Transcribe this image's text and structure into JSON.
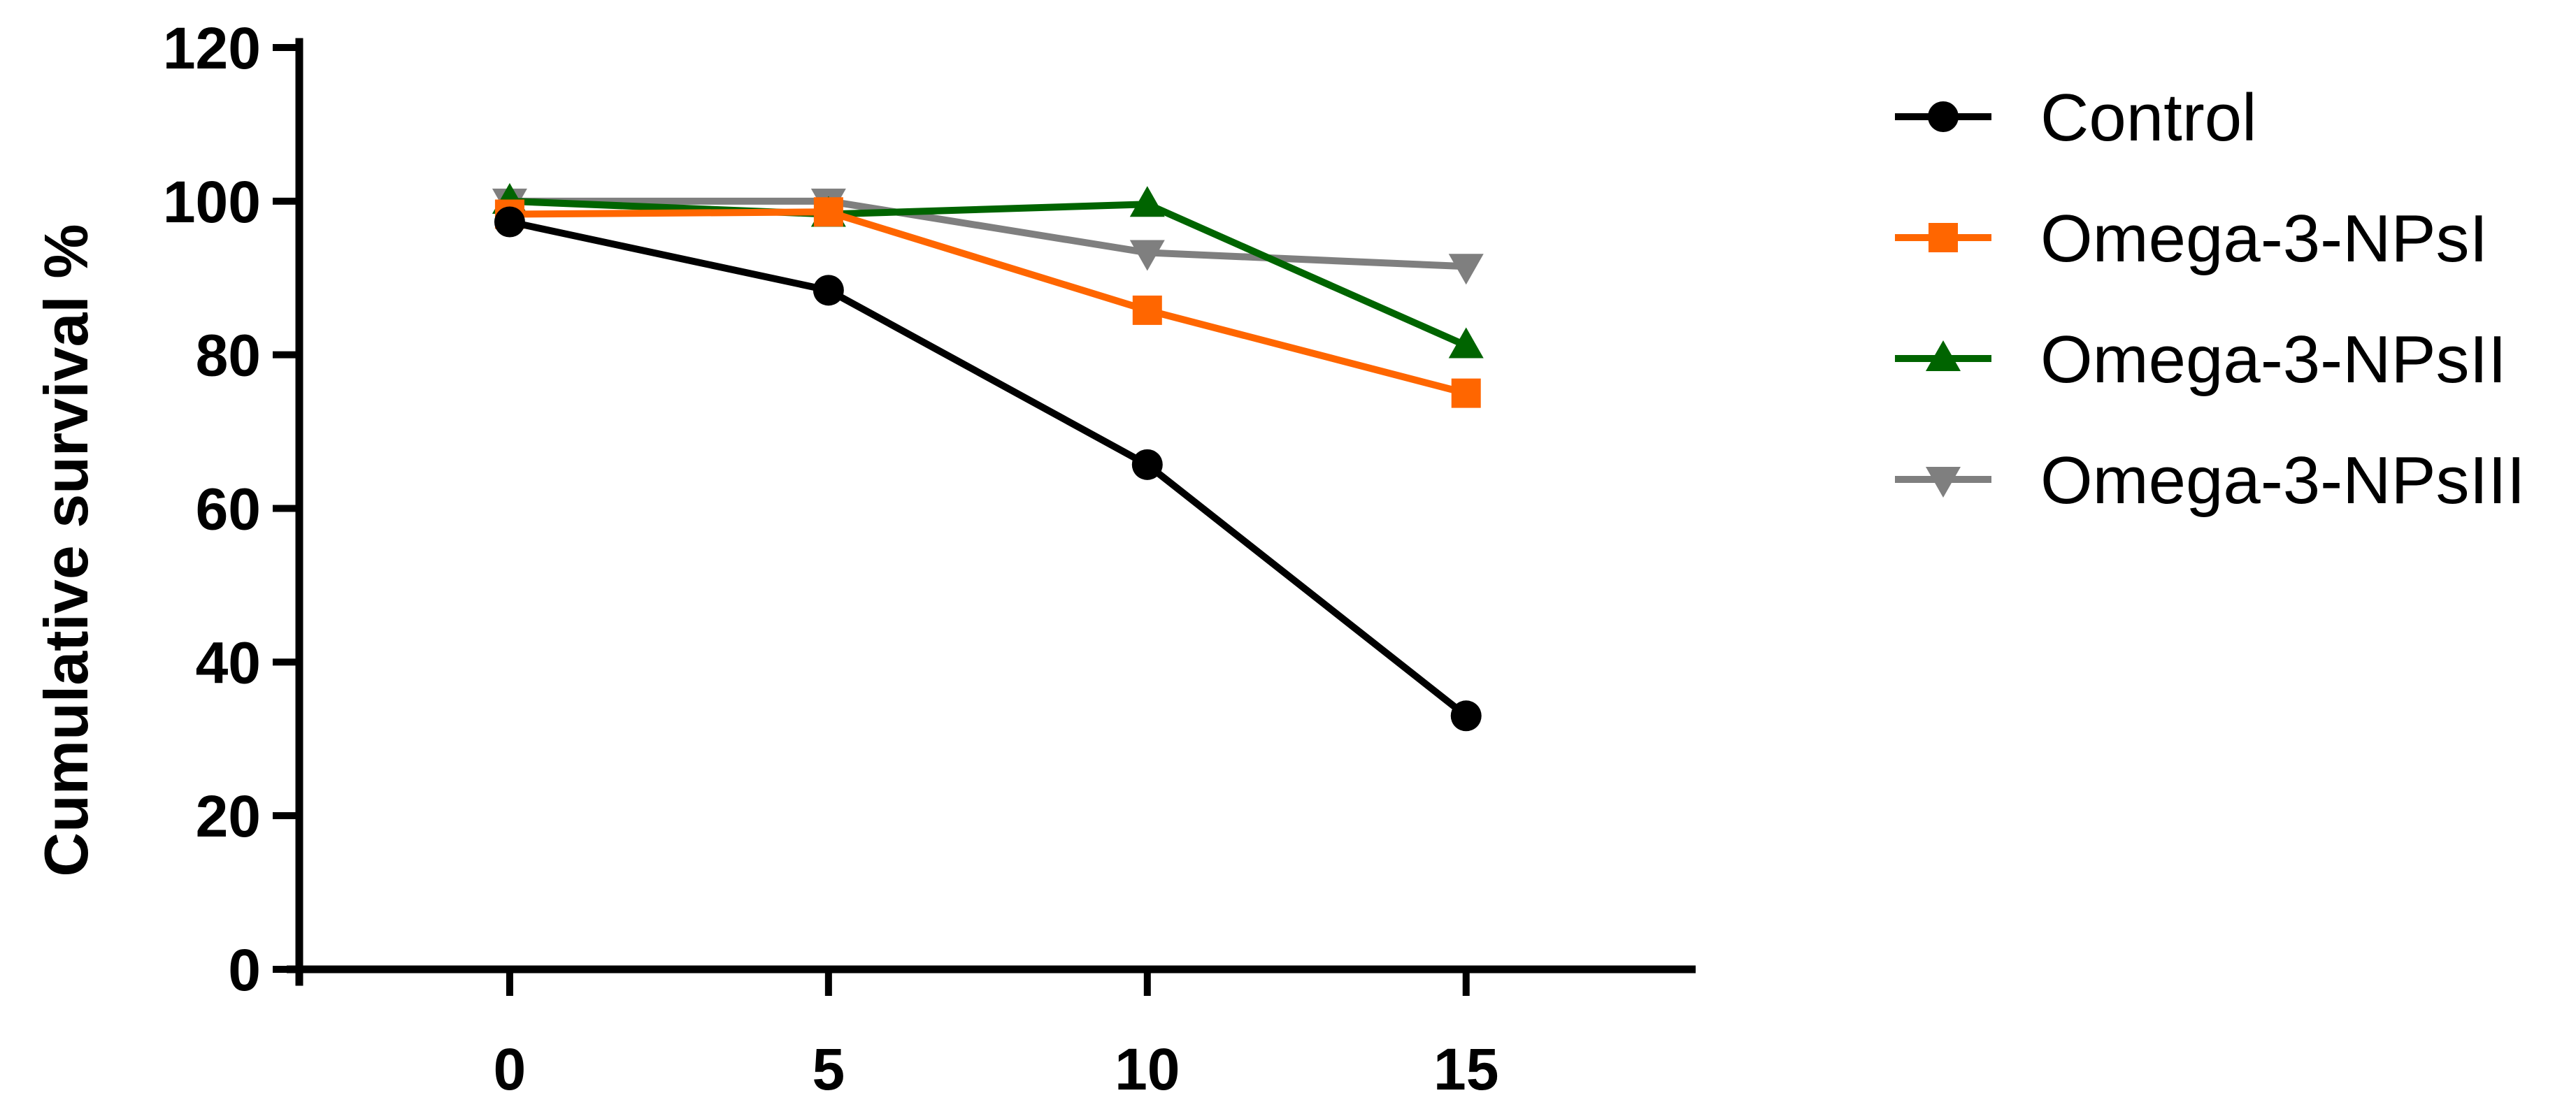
{
  "chart_data": {
    "type": "line",
    "title": "",
    "xlabel": "",
    "ylabel": "Cumulative survival %",
    "x": [
      0,
      5,
      10,
      15
    ],
    "x_ticks": [
      "0",
      "5",
      "10",
      "15"
    ],
    "y_ticks": [
      "0",
      "20",
      "40",
      "60",
      "80",
      "100",
      "120"
    ],
    "xlim": [
      -3.3,
      18.6
    ],
    "ylim": [
      0,
      120
    ],
    "grid": false,
    "legend_position": "right",
    "series": [
      {
        "name": "Control",
        "values": [
          97.3,
          88.4,
          65.7,
          33.0
        ],
        "color": "#000000",
        "marker": "circle"
      },
      {
        "name": "Omega-3-NPsI",
        "values": [
          98.3,
          98.6,
          85.8,
          75.0
        ],
        "color": "#ff6600",
        "marker": "square"
      },
      {
        "name": "Omega-3-NPsII",
        "values": [
          100.0,
          98.3,
          99.6,
          81.2
        ],
        "color": "#006400",
        "marker": "triangle-up"
      },
      {
        "name": "Omega-3-NPsIII",
        "values": [
          100.0,
          100.0,
          93.3,
          91.5
        ],
        "color": "#7f7f7f",
        "marker": "triangle-down"
      }
    ]
  }
}
